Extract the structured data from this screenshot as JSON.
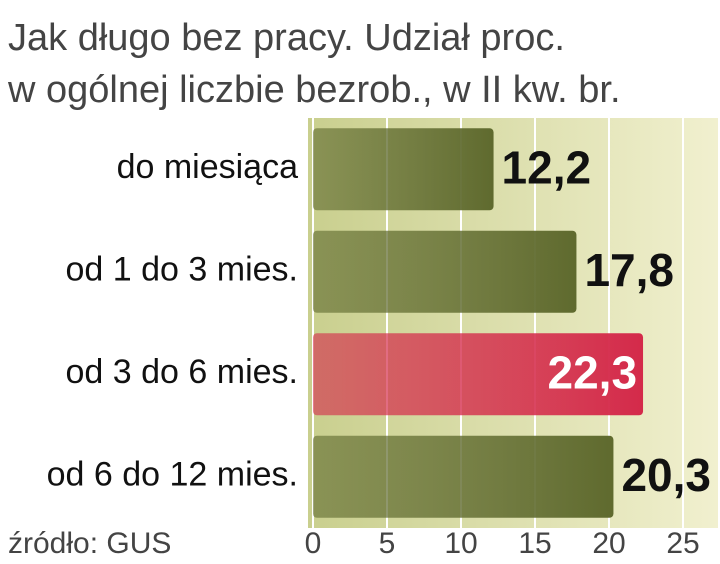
{
  "chart_data": {
    "type": "barh",
    "title": [
      "Jak długo bez pracy. Udział proc.",
      "w ogólnej liczbie bezrob., w II kw. br."
    ],
    "categories": [
      "do miesiąca",
      "od 1 do 3 mies.",
      "od 3 do 6 mies.",
      "od 6 do 12 mies."
    ],
    "values": [
      12.2,
      17.8,
      22.3,
      20.3
    ],
    "value_labels": [
      "12,2",
      "17,8",
      "22,3",
      "20,3"
    ],
    "colors": [
      "#5f6a2e",
      "#5f6a2e",
      "#d42a4a",
      "#5f6a2e"
    ],
    "label_colors": [
      "#111111",
      "#111111",
      "#ffffff",
      "#111111"
    ],
    "xlim": [
      0,
      25
    ],
    "xticks": [
      0,
      5,
      10,
      15,
      20,
      25
    ],
    "grid": true,
    "source": "źródło: GUS"
  }
}
